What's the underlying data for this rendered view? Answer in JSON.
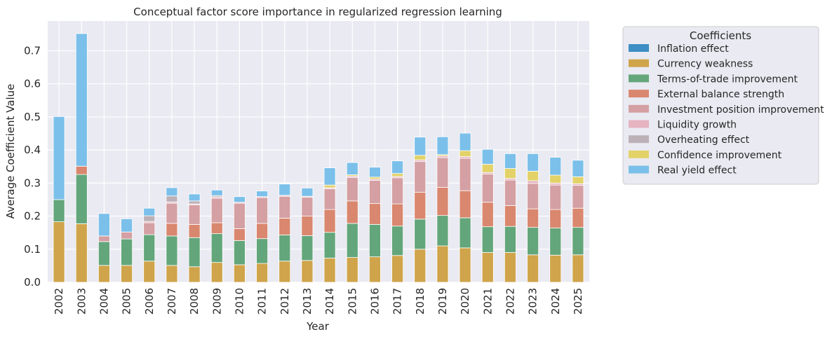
{
  "chart_data": {
    "type": "bar",
    "stacked": true,
    "title": "Conceptual factor score importance in regularized regression learning",
    "xlabel": "Year",
    "ylabel": "Average Coefficient Value",
    "ylim": [
      0,
      0.79
    ],
    "yticks": [
      "0.0",
      "0.1",
      "0.2",
      "0.3",
      "0.4",
      "0.5",
      "0.6",
      "0.7"
    ],
    "grid": true,
    "legend_title": "Coefficients",
    "legend_position": "outside-right",
    "categories": [
      "2002",
      "2003",
      "2004",
      "2005",
      "2006",
      "2007",
      "2008",
      "2009",
      "2010",
      "2011",
      "2012",
      "2013",
      "2014",
      "2015",
      "2016",
      "2017",
      "2018",
      "2019",
      "2020",
      "2021",
      "2022",
      "2023",
      "2024",
      "2025"
    ],
    "series": [
      {
        "name": "Inflation effect",
        "color": "#3d8ec4",
        "values": [
          0,
          0,
          0,
          0,
          0,
          0,
          0,
          0,
          0,
          0,
          0,
          0,
          0,
          0,
          0,
          0,
          0,
          0,
          0,
          0,
          0,
          0,
          0,
          0
        ]
      },
      {
        "name": "Currency weakness",
        "color": "#cfa44a",
        "values": [
          0.183,
          0.177,
          0.051,
          0.051,
          0.064,
          0.051,
          0.047,
          0.06,
          0.053,
          0.057,
          0.064,
          0.066,
          0.073,
          0.075,
          0.077,
          0.081,
          0.1,
          0.11,
          0.104,
          0.09,
          0.09,
          0.083,
          0.082,
          0.083
        ]
      },
      {
        "name": "Terms-of-trade improvement",
        "color": "#63a67b",
        "values": [
          0.067,
          0.149,
          0.072,
          0.08,
          0.08,
          0.089,
          0.088,
          0.087,
          0.073,
          0.075,
          0.079,
          0.075,
          0.078,
          0.103,
          0.098,
          0.089,
          0.091,
          0.092,
          0.091,
          0.078,
          0.079,
          0.083,
          0.082,
          0.083
        ]
      },
      {
        "name": "External balance strength",
        "color": "#d9876e",
        "values": [
          0,
          0.025,
          0,
          0,
          0,
          0.038,
          0.04,
          0.033,
          0.036,
          0.046,
          0.051,
          0.059,
          0.069,
          0.068,
          0.063,
          0.067,
          0.081,
          0.085,
          0.082,
          0.074,
          0.063,
          0.056,
          0.056,
          0.058
        ]
      },
      {
        "name": "Investment position improvement",
        "color": "#d4a0a3",
        "values": [
          0,
          0,
          0.017,
          0.021,
          0.036,
          0.061,
          0.059,
          0.074,
          0.077,
          0.078,
          0.066,
          0.057,
          0.063,
          0.071,
          0.07,
          0.079,
          0.093,
          0.09,
          0.098,
          0.085,
          0.077,
          0.077,
          0.074,
          0.069
        ]
      },
      {
        "name": "Liquidity growth",
        "color": "#e6b3c1",
        "values": [
          0,
          0,
          0,
          0,
          0.004,
          0.004,
          0.003,
          0.004,
          0.003,
          0.003,
          0.003,
          0.003,
          0.003,
          0.004,
          0.004,
          0.004,
          0.005,
          0.005,
          0.005,
          0.005,
          0.005,
          0.008,
          0.006,
          0.005
        ]
      },
      {
        "name": "Overheating effect",
        "color": "#bcb1b6",
        "values": [
          0,
          0,
          0,
          0,
          0.017,
          0.018,
          0.009,
          0.004,
          0,
          0,
          0,
          0,
          0,
          0,
          0,
          0,
          0,
          0,
          0,
          0,
          0,
          0,
          0,
          0
        ]
      },
      {
        "name": "Confidence improvement",
        "color": "#e2d268",
        "values": [
          0,
          0,
          0,
          0,
          0,
          0,
          0,
          0,
          0,
          0,
          0,
          0,
          0.008,
          0.004,
          0.006,
          0.009,
          0.014,
          0.004,
          0.018,
          0.025,
          0.03,
          0.029,
          0.024,
          0.021
        ]
      },
      {
        "name": "Real yield effect",
        "color": "#7bc0ea",
        "values": [
          0.251,
          0.401,
          0.068,
          0.04,
          0.023,
          0.025,
          0.021,
          0.017,
          0.017,
          0.017,
          0.034,
          0.025,
          0.052,
          0.037,
          0.03,
          0.038,
          0.055,
          0.054,
          0.053,
          0.045,
          0.045,
          0.053,
          0.054,
          0.05
        ]
      }
    ]
  }
}
